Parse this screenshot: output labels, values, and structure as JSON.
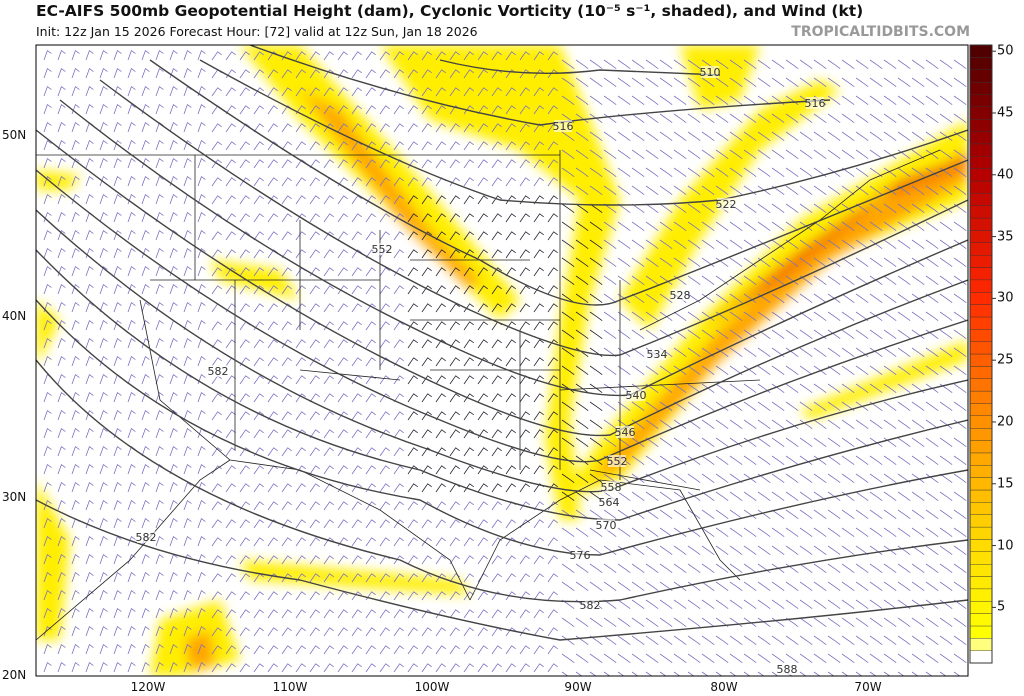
{
  "header": {
    "title": "EC-AIFS 500mb Geopotential Height (dam), Cyclonic Vorticity (10⁻⁵ s⁻¹, shaded), and Wind (kt)",
    "subtitle": "Init: 12z Jan 15 2026   Forecast Hour: [72]   valid at 12z Sun, Jan 18 2026",
    "watermark": "TROPICALTIDBITS.COM"
  },
  "map": {
    "lat_labels": [
      "50N",
      "40N",
      "30N",
      "20N"
    ],
    "lon_labels": [
      "120W",
      "110W",
      "100W",
      "90W",
      "80W",
      "70W"
    ],
    "contour_labels": [
      "510",
      "516",
      "516",
      "522",
      "528",
      "534",
      "540",
      "546",
      "552",
      "558",
      "564",
      "570",
      "576",
      "582",
      "582",
      "582",
      "552",
      "588"
    ],
    "shading_colors": [
      "#ffff00",
      "#ffd700",
      "#ffa500",
      "#ff6a00",
      "#ff0000",
      "#a00000",
      "#5a0000"
    ]
  },
  "colorbar": {
    "ticks": [
      "50",
      "45",
      "40",
      "35",
      "30",
      "25",
      "20",
      "15",
      "10",
      "5"
    ],
    "min": 1,
    "max": 50
  }
}
